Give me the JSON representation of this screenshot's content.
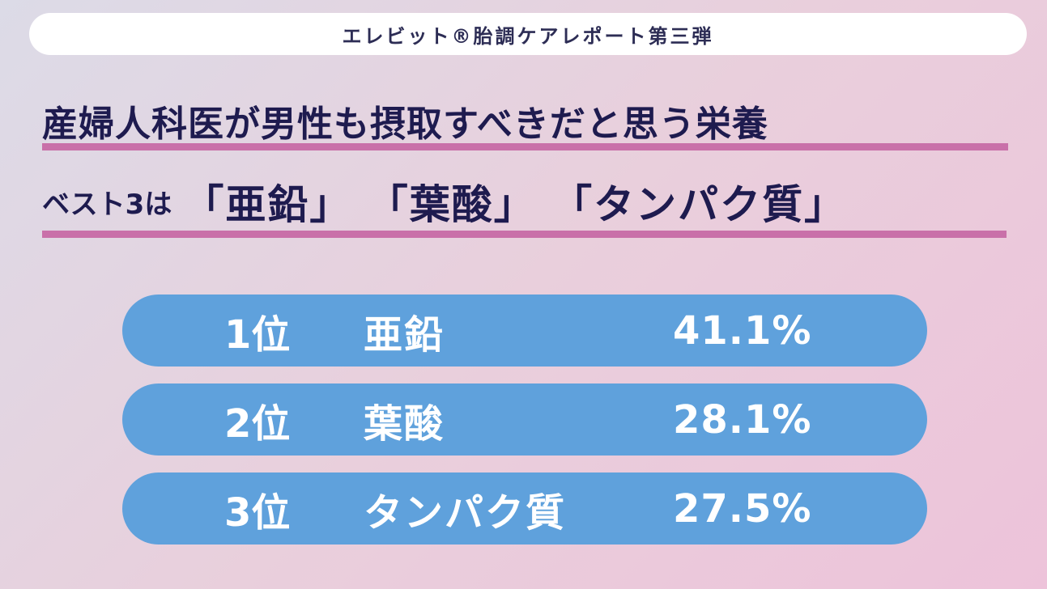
{
  "banner": {
    "title": "エレビット®胎調ケアレポート第三弾"
  },
  "headline": {
    "line1": "産婦人科医が男性も摂取すべきだと思う栄養",
    "line2_prefix": "ベスト3は",
    "line2_items": "「亜鉛」 「葉酸」 「タンパク質」"
  },
  "ranking": [
    {
      "rank": "1位",
      "name": "亜鉛",
      "percent": "41.1%"
    },
    {
      "rank": "2位",
      "name": "葉酸",
      "percent": "28.1%"
    },
    {
      "rank": "3位",
      "name": "タンパク質",
      "percent": "27.5%"
    }
  ],
  "colors": {
    "navy_text": "#1e1b4f",
    "underline_pink": "#c970a9",
    "pill_blue": "#5fa1dc",
    "banner_white": "#ffffff"
  }
}
